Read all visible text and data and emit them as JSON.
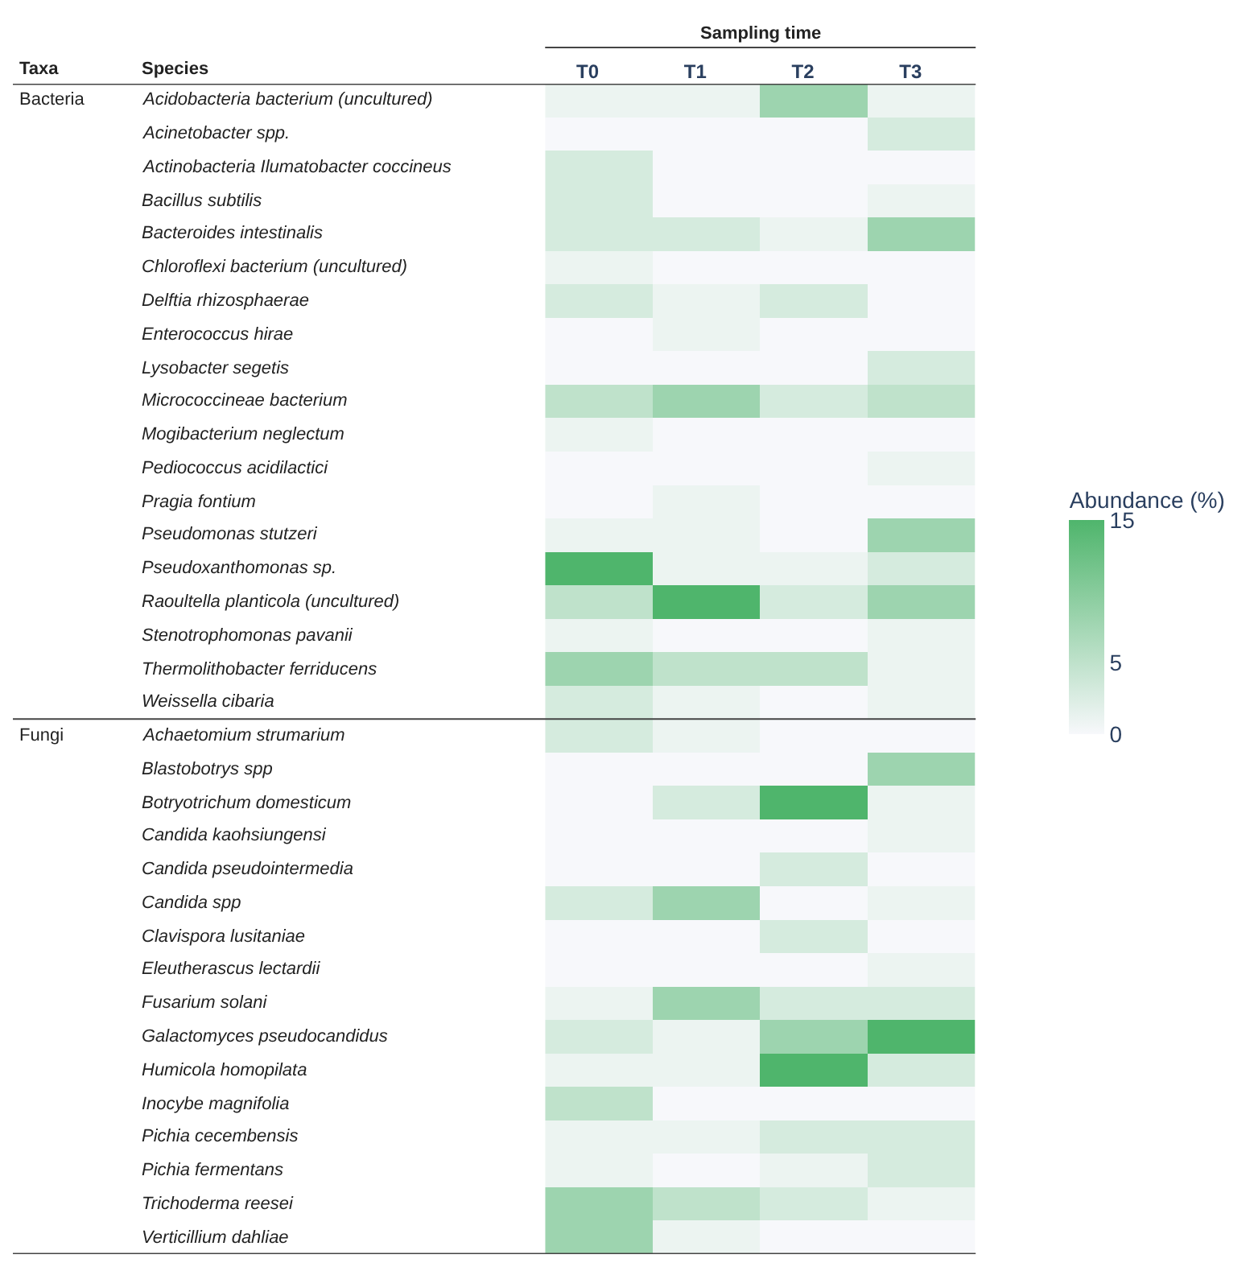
{
  "chart_data": {
    "type": "heatmap",
    "xlabel": "Sampling time",
    "clabel": "Abundance (%)",
    "annotations": [
      "Taxa",
      "Species"
    ],
    "categories": [
      "T0",
      "T1",
      "T2",
      "T3"
    ],
    "y_categories": [
      "Acidobacteria bacterium (uncultured)",
      "Acinetobacter spp.",
      "Actinobacteria Ilumatobacter coccineus",
      "Bacillus subtilis",
      "Bacteroides intestinalis",
      "Chloroflexi bacterium (uncultured)",
      "Delftia rhizosphaerae",
      "Enterococcus hirae",
      "Lysobacter segetis",
      "Micrococcineae bacterium",
      "Mogibacterium neglectum",
      "Pediococcus acidilactici",
      "Pragia fontium",
      "Pseudomonas stutzeri",
      "Pseudoxanthomonas sp.",
      "Raoultella planticola (uncultured)",
      "Stenotrophomonas pavanii",
      "Thermolithobacter ferriducens",
      "Weissella cibaria",
      "Achaetomium strumarium",
      "Blastobotrys spp",
      "Botryotrichum domesticum",
      "Candida kaohsiungensi",
      "Candida pseudointermedia",
      "Candida spp",
      "Clavispora lusitaniae",
      "Eleutherascus lectardii",
      "Fusarium solani",
      "Galactomyces pseudocandidus",
      "Humicola homopilata",
      "Inocybe magnifolia",
      "Pichia cecembensis",
      "Pichia fermentans",
      "Trichoderma reesei",
      "Verticillium dahliae"
    ],
    "y2_categories": [
      "Bacteria",
      null,
      null,
      null,
      null,
      null,
      null,
      null,
      null,
      null,
      null,
      null,
      null,
      null,
      null,
      null,
      null,
      null,
      null,
      "Fungi",
      null,
      null,
      null,
      null,
      null,
      null,
      null,
      null,
      null,
      null,
      null,
      null,
      null,
      null,
      null
    ],
    "cells": [
      [
        1,
        1,
        8,
        1
      ],
      [
        0,
        0,
        0,
        3
      ],
      [
        3,
        0,
        0,
        0
      ],
      [
        3,
        0,
        0,
        1
      ],
      [
        3,
        3,
        1,
        8
      ],
      [
        1,
        0,
        0,
        0
      ],
      [
        3,
        1,
        3,
        0
      ],
      [
        0,
        1,
        0,
        0
      ],
      [
        0,
        0,
        0,
        3
      ],
      [
        5,
        8,
        3,
        5
      ],
      [
        1,
        0,
        0,
        0
      ],
      [
        0,
        0,
        0,
        1
      ],
      [
        0,
        1,
        0,
        0
      ],
      [
        1,
        1,
        0,
        8
      ],
      [
        15,
        1,
        1,
        3
      ],
      [
        5,
        15,
        3,
        8
      ],
      [
        1,
        0,
        0,
        1
      ],
      [
        8,
        5,
        5,
        1
      ],
      [
        3,
        1,
        0,
        1
      ],
      [
        3,
        1,
        0,
        0
      ],
      [
        0,
        0,
        0,
        8
      ],
      [
        0,
        3,
        15,
        1
      ],
      [
        0,
        0,
        0,
        1
      ],
      [
        0,
        0,
        3,
        0
      ],
      [
        3,
        8,
        0,
        1
      ],
      [
        0,
        0,
        3,
        0
      ],
      [
        0,
        0,
        0,
        1
      ],
      [
        1,
        8,
        3,
        3
      ],
      [
        3,
        1,
        8,
        15
      ],
      [
        1,
        1,
        15,
        3
      ],
      [
        5,
        0,
        0,
        0
      ],
      [
        1,
        1,
        3,
        3
      ],
      [
        1,
        0,
        1,
        3
      ],
      [
        8,
        5,
        3,
        1
      ],
      [
        8,
        1,
        0,
        0
      ]
    ],
    "clim": [
      0,
      15
    ],
    "cticks": [
      0,
      5,
      15
    ]
  }
}
